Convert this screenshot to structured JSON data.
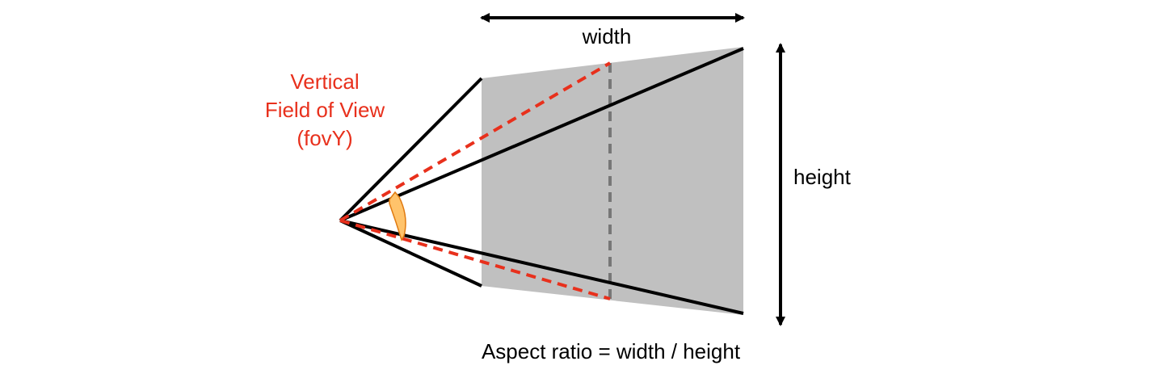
{
  "labels": {
    "width": "width",
    "height": "height",
    "fov_line1": "Vertical",
    "fov_line2": "Field of View",
    "fov_line3": "(fovY)",
    "aspect_ratio": "Aspect ratio = width / height"
  },
  "colors": {
    "frustum_edge": "#000000",
    "fov_line": "#e8301c",
    "fov_text": "#e8301c",
    "plane_fill": "#c0c0c0",
    "divider": "#777777",
    "angle_arrow": "#ffc36b",
    "angle_arrow_outline": "#e07a10"
  }
}
